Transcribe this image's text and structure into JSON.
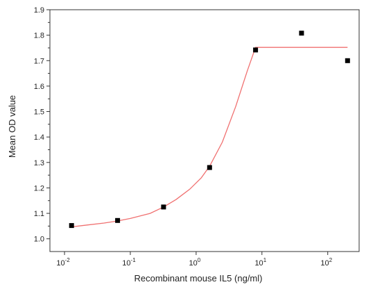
{
  "chart_data": {
    "type": "scatter",
    "xlabel": "Recombinant mouse IL5 (ng/ml)",
    "ylabel": "Mean OD value",
    "x_scale": "log",
    "xlim": [
      0.006,
      300
    ],
    "ylim": [
      0.95,
      1.9
    ],
    "x_ticks": [
      {
        "value": 0.01,
        "base": "10",
        "exp": "-2"
      },
      {
        "value": 0.1,
        "base": "10",
        "exp": "-1"
      },
      {
        "value": 1,
        "base": "10",
        "exp": "0"
      },
      {
        "value": 10,
        "base": "10",
        "exp": "1"
      },
      {
        "value": 100,
        "base": "10",
        "exp": "2"
      }
    ],
    "y_ticks": [
      "1.0",
      "1.1",
      "1.2",
      "1.3",
      "1.4",
      "1.5",
      "1.6",
      "1.7",
      "1.8",
      "1.9"
    ],
    "grid": false,
    "legend": "none",
    "series": [
      {
        "type": "scatter",
        "color": "#000000",
        "x": [
          0.0128,
          0.064,
          0.32,
          1.6,
          8,
          40,
          200
        ],
        "y": [
          1.052,
          1.072,
          1.125,
          1.28,
          1.742,
          1.808,
          1.7
        ]
      },
      {
        "type": "line",
        "color": "#f07070",
        "x": [
          0.0128,
          0.02,
          0.04,
          0.064,
          0.1,
          0.2,
          0.32,
          0.5,
          0.8,
          1.2,
          1.6,
          2.5,
          4,
          6,
          8,
          10,
          20,
          50,
          100,
          200
        ],
        "y": [
          1.047,
          1.053,
          1.062,
          1.07,
          1.08,
          1.1,
          1.125,
          1.155,
          1.195,
          1.24,
          1.285,
          1.38,
          1.52,
          1.66,
          1.752,
          1.752,
          1.752,
          1.752,
          1.752,
          1.752
        ]
      }
    ]
  }
}
